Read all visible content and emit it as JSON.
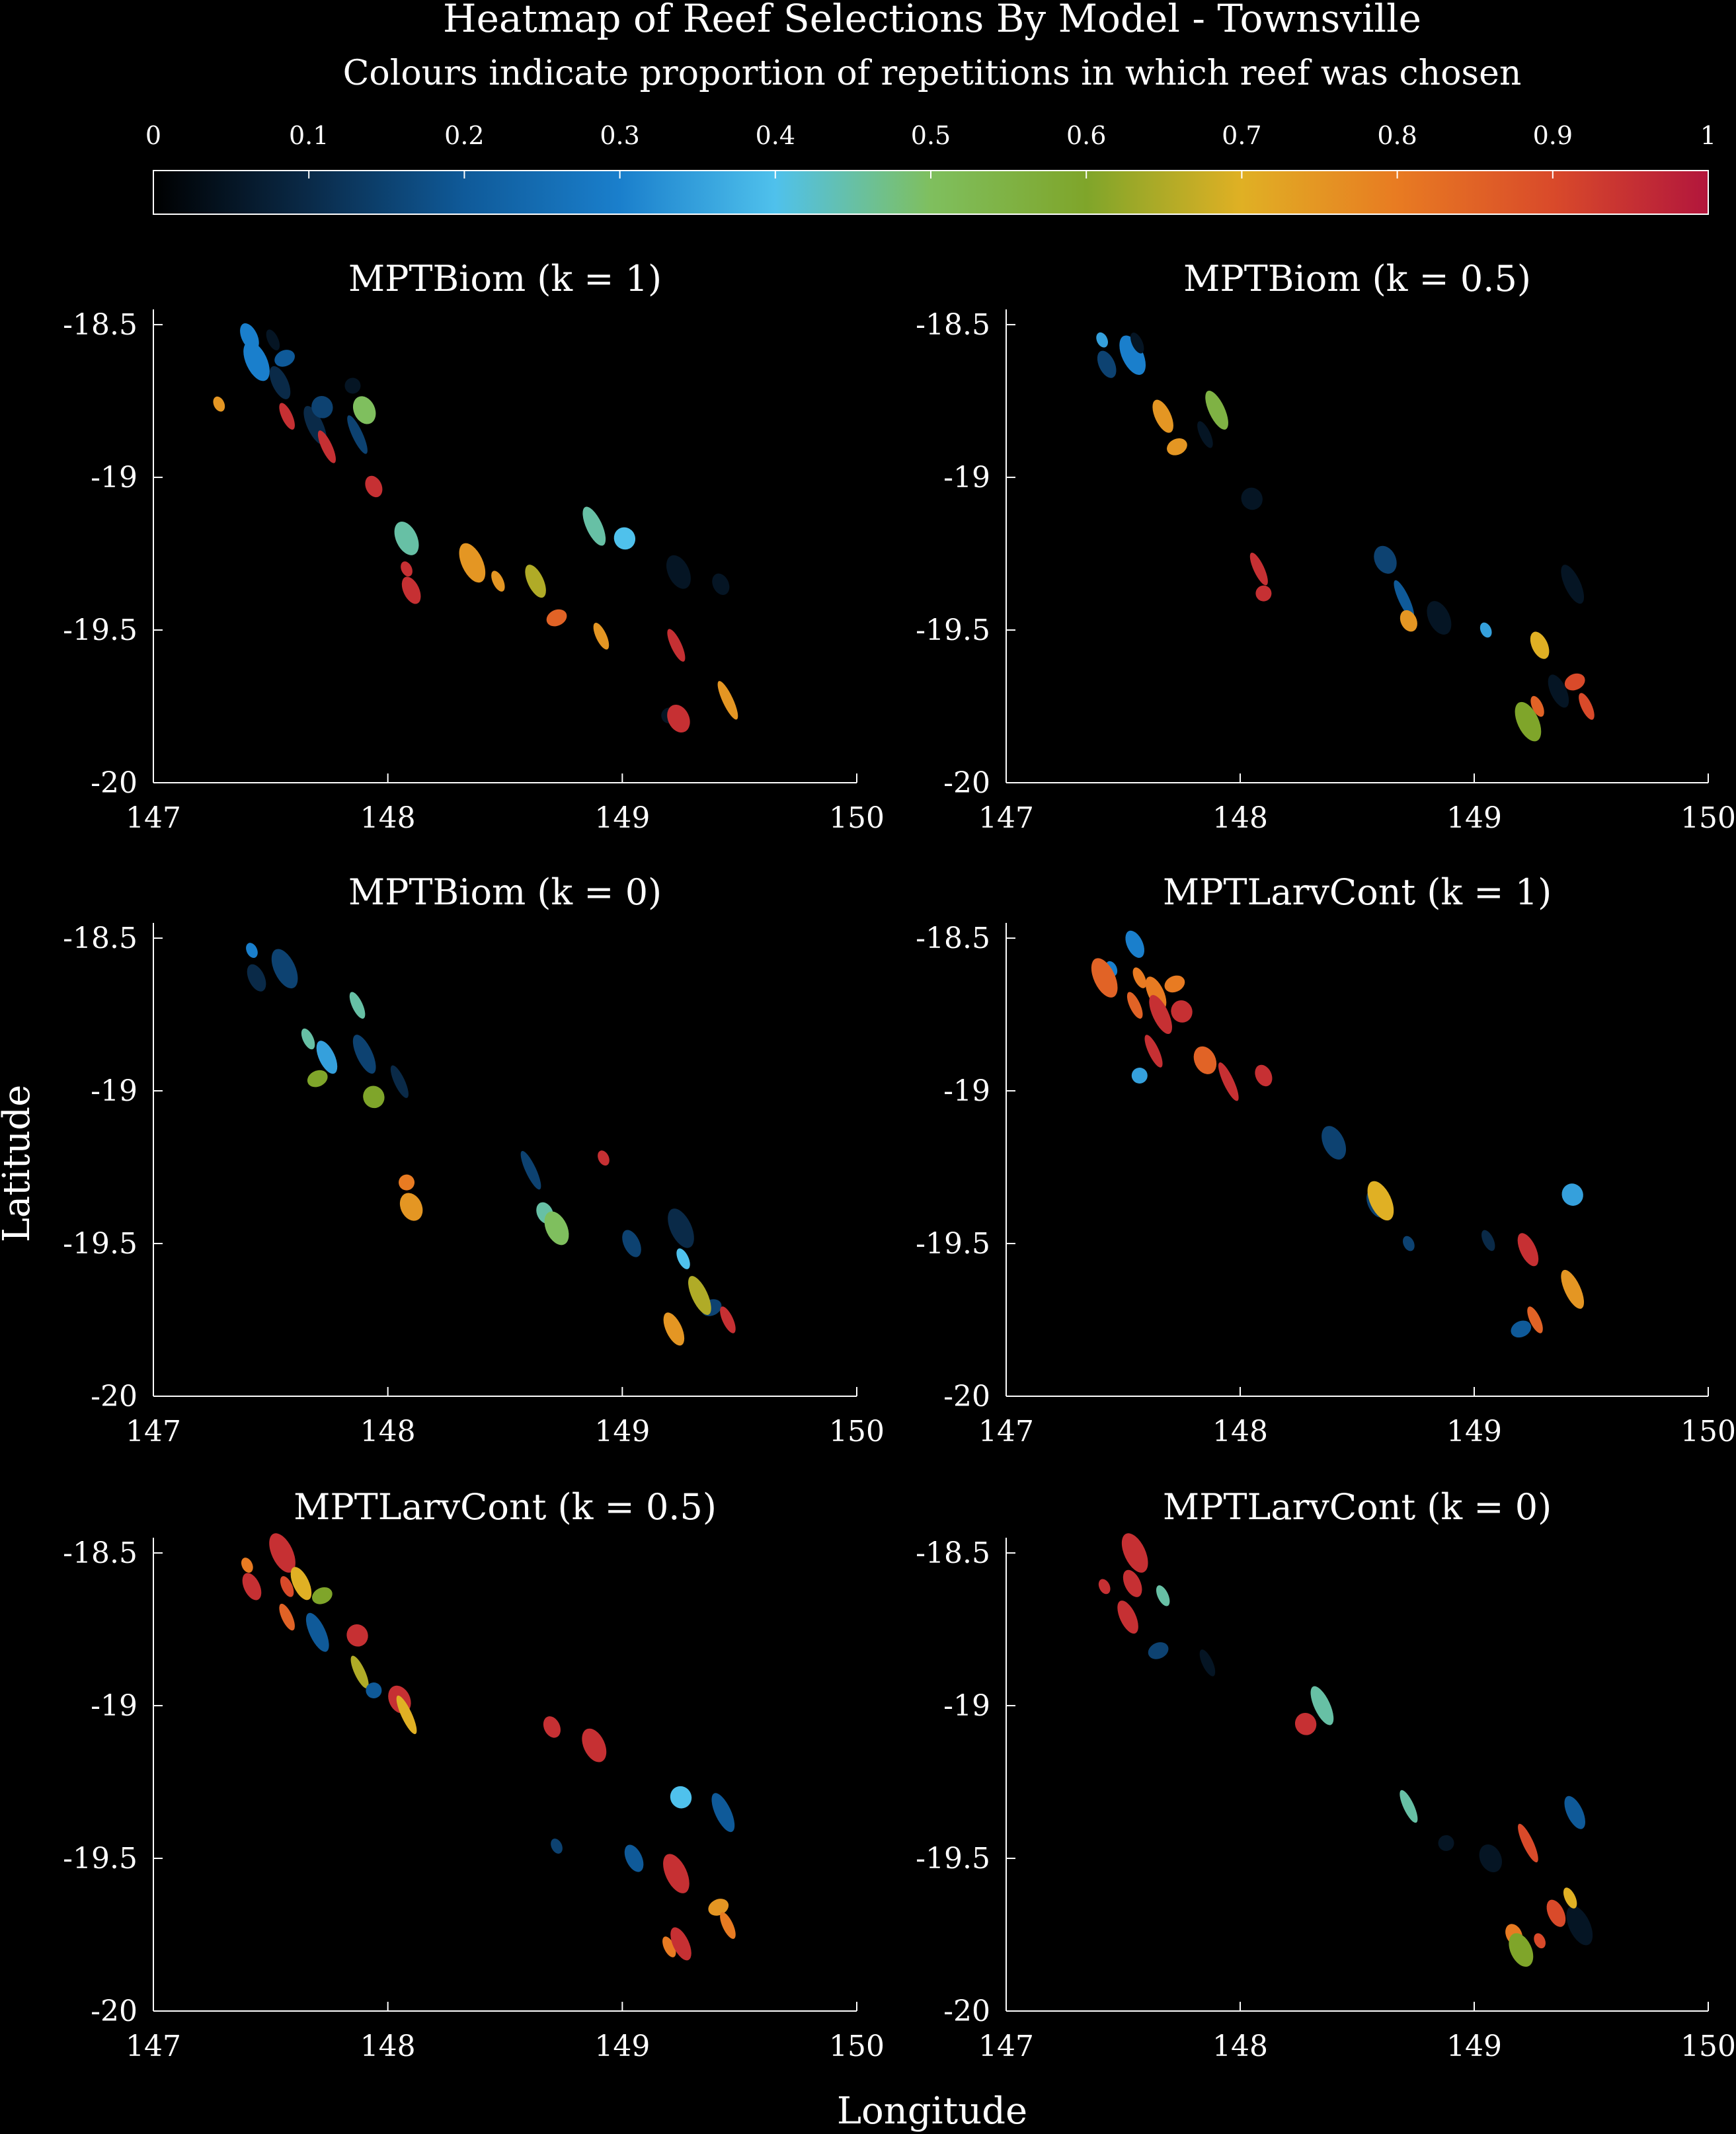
{
  "figure": {
    "title": "Heatmap of Reef Selections By Model - Townsville",
    "subtitle": "Colours indicate proportion of repetitions in which reef was chosen",
    "xlabel": "Longitude",
    "ylabel": "Latitude",
    "background": "#000000",
    "colorbar": {
      "ticks": [
        "0",
        "0.1",
        "0.2",
        "0.3",
        "0.4",
        "0.5",
        "0.6",
        "0.7",
        "0.8",
        "0.9",
        "1"
      ],
      "colormap": [
        "#000000",
        "#0a2a48",
        "#0f5a99",
        "#1a7fcc",
        "#4fc1ec",
        "#7fbf5e",
        "#7fa52a",
        "#e0b024",
        "#e87b22",
        "#d94a2a",
        "#b2163c"
      ]
    }
  },
  "chart_data": [
    {
      "type": "heatmap",
      "title": "MPTBiom (k = 1)",
      "xlim": [
        147,
        150
      ],
      "ylim": [
        -20,
        -18.45
      ],
      "xticks": [
        "147",
        "148",
        "149",
        "150"
      ],
      "yticks": [
        "-18.5",
        "-19",
        "-19.5",
        "-20"
      ],
      "reefs": [
        {
          "lon": 147.28,
          "lat": -18.76,
          "value": 0.75
        },
        {
          "lon": 147.41,
          "lat": -18.54,
          "value": 0.3
        },
        {
          "lon": 147.44,
          "lat": -18.62,
          "value": 0.3
        },
        {
          "lon": 147.51,
          "lat": -18.55,
          "value": 0.05
        },
        {
          "lon": 147.54,
          "lat": -18.69,
          "value": 0.1
        },
        {
          "lon": 147.56,
          "lat": -18.61,
          "value": 0.2
        },
        {
          "lon": 147.57,
          "lat": -18.8,
          "value": 0.95
        },
        {
          "lon": 147.69,
          "lat": -18.83,
          "value": 0.1
        },
        {
          "lon": 147.72,
          "lat": -18.77,
          "value": 0.15
        },
        {
          "lon": 147.74,
          "lat": -18.9,
          "value": 0.95
        },
        {
          "lon": 147.85,
          "lat": -18.7,
          "value": 0.05
        },
        {
          "lon": 147.9,
          "lat": -18.78,
          "value": 0.5
        },
        {
          "lon": 147.87,
          "lat": -18.86,
          "value": 0.15
        },
        {
          "lon": 147.94,
          "lat": -19.03,
          "value": 0.95
        },
        {
          "lon": 148.08,
          "lat": -19.2,
          "value": 0.45
        },
        {
          "lon": 148.08,
          "lat": -19.3,
          "value": 0.95
        },
        {
          "lon": 148.1,
          "lat": -19.37,
          "value": 0.95
        },
        {
          "lon": 148.36,
          "lat": -19.28,
          "value": 0.75
        },
        {
          "lon": 148.47,
          "lat": -19.34,
          "value": 0.75
        },
        {
          "lon": 148.63,
          "lat": -19.34,
          "value": 0.65
        },
        {
          "lon": 148.72,
          "lat": -19.46,
          "value": 0.85
        },
        {
          "lon": 148.91,
          "lat": -19.52,
          "value": 0.75
        },
        {
          "lon": 148.88,
          "lat": -19.16,
          "value": 0.45
        },
        {
          "lon": 149.01,
          "lat": -19.2,
          "value": 0.4
        },
        {
          "lon": 149.23,
          "lat": -19.55,
          "value": 0.95
        },
        {
          "lon": 149.2,
          "lat": -19.78,
          "value": 0.05
        },
        {
          "lon": 149.24,
          "lat": -19.79,
          "value": 0.95
        },
        {
          "lon": 149.45,
          "lat": -19.73,
          "value": 0.75
        },
        {
          "lon": 149.42,
          "lat": -19.35,
          "value": 0.05
        },
        {
          "lon": 149.24,
          "lat": -19.31,
          "value": 0.05
        }
      ]
    },
    {
      "type": "heatmap",
      "title": "MPTBiom (k = 0.5)",
      "xlim": [
        147,
        150
      ],
      "ylim": [
        -20,
        -18.45
      ],
      "xticks": [
        "147",
        "148",
        "149",
        "150"
      ],
      "yticks": [
        "-18.5",
        "-19",
        "-19.5",
        "-20"
      ],
      "reefs": [
        {
          "lon": 147.41,
          "lat": -18.55,
          "value": 0.35
        },
        {
          "lon": 147.43,
          "lat": -18.63,
          "value": 0.15
        },
        {
          "lon": 147.54,
          "lat": -18.6,
          "value": 0.3
        },
        {
          "lon": 147.56,
          "lat": -18.56,
          "value": 0.05
        },
        {
          "lon": 147.67,
          "lat": -18.8,
          "value": 0.75
        },
        {
          "lon": 147.73,
          "lat": -18.9,
          "value": 0.75
        },
        {
          "lon": 147.85,
          "lat": -18.86,
          "value": 0.05
        },
        {
          "lon": 147.9,
          "lat": -18.78,
          "value": 0.55
        },
        {
          "lon": 148.05,
          "lat": -19.07,
          "value": 0.05
        },
        {
          "lon": 148.08,
          "lat": -19.3,
          "value": 0.95
        },
        {
          "lon": 148.1,
          "lat": -19.38,
          "value": 0.95
        },
        {
          "lon": 148.62,
          "lat": -19.27,
          "value": 0.15
        },
        {
          "lon": 148.7,
          "lat": -19.4,
          "value": 0.2
        },
        {
          "lon": 148.72,
          "lat": -19.47,
          "value": 0.75
        },
        {
          "lon": 148.85,
          "lat": -19.46,
          "value": 0.05
        },
        {
          "lon": 149.05,
          "lat": -19.5,
          "value": 0.35
        },
        {
          "lon": 149.28,
          "lat": -19.55,
          "value": 0.7
        },
        {
          "lon": 149.23,
          "lat": -19.8,
          "value": 0.6
        },
        {
          "lon": 149.27,
          "lat": -19.75,
          "value": 0.85
        },
        {
          "lon": 149.36,
          "lat": -19.7,
          "value": 0.05
        },
        {
          "lon": 149.43,
          "lat": -19.67,
          "value": 0.9
        },
        {
          "lon": 149.48,
          "lat": -19.75,
          "value": 0.9
        },
        {
          "lon": 149.42,
          "lat": -19.35,
          "value": 0.05
        }
      ]
    },
    {
      "type": "heatmap",
      "title": "MPTBiom (k = 0)",
      "xlim": [
        147,
        150
      ],
      "ylim": [
        -20,
        -18.45
      ],
      "xticks": [
        "147",
        "148",
        "149",
        "150"
      ],
      "yticks": [
        "-18.5",
        "-19",
        "-19.5",
        "-20"
      ],
      "reefs": [
        {
          "lon": 147.42,
          "lat": -18.54,
          "value": 0.3
        },
        {
          "lon": 147.44,
          "lat": -18.63,
          "value": 0.1
        },
        {
          "lon": 147.56,
          "lat": -18.6,
          "value": 0.15
        },
        {
          "lon": 147.66,
          "lat": -18.83,
          "value": 0.45
        },
        {
          "lon": 147.74,
          "lat": -18.89,
          "value": 0.35
        },
        {
          "lon": 147.7,
          "lat": -18.96,
          "value": 0.6
        },
        {
          "lon": 147.87,
          "lat": -18.72,
          "value": 0.45
        },
        {
          "lon": 147.9,
          "lat": -18.88,
          "value": 0.15
        },
        {
          "lon": 147.94,
          "lat": -19.02,
          "value": 0.6
        },
        {
          "lon": 148.05,
          "lat": -18.97,
          "value": 0.1
        },
        {
          "lon": 148.08,
          "lat": -19.3,
          "value": 0.8
        },
        {
          "lon": 148.1,
          "lat": -19.38,
          "value": 0.75
        },
        {
          "lon": 148.61,
          "lat": -19.26,
          "value": 0.15
        },
        {
          "lon": 148.67,
          "lat": -19.4,
          "value": 0.45
        },
        {
          "lon": 148.72,
          "lat": -19.45,
          "value": 0.5
        },
        {
          "lon": 148.92,
          "lat": -19.22,
          "value": 0.95
        },
        {
          "lon": 149.04,
          "lat": -19.5,
          "value": 0.15
        },
        {
          "lon": 149.25,
          "lat": -19.45,
          "value": 0.1
        },
        {
          "lon": 149.26,
          "lat": -19.55,
          "value": 0.4
        },
        {
          "lon": 149.22,
          "lat": -19.78,
          "value": 0.75
        },
        {
          "lon": 149.38,
          "lat": -19.71,
          "value": 0.15
        },
        {
          "lon": 149.45,
          "lat": -19.75,
          "value": 0.95
        },
        {
          "lon": 149.33,
          "lat": -19.67,
          "value": 0.65
        }
      ]
    },
    {
      "type": "heatmap",
      "title": "MPTLarvCont (k = 1)",
      "xlim": [
        147,
        150
      ],
      "ylim": [
        -20,
        -18.45
      ],
      "xticks": [
        "147",
        "148",
        "149",
        "150"
      ],
      "yticks": [
        "-18.5",
        "-19",
        "-19.5",
        "-20"
      ],
      "reefs": [
        {
          "lon": 147.45,
          "lat": -18.6,
          "value": 0.3
        },
        {
          "lon": 147.55,
          "lat": -18.52,
          "value": 0.3
        },
        {
          "lon": 147.42,
          "lat": -18.63,
          "value": 0.85
        },
        {
          "lon": 147.57,
          "lat": -18.63,
          "value": 0.8
        },
        {
          "lon": 147.64,
          "lat": -18.68,
          "value": 0.8
        },
        {
          "lon": 147.72,
          "lat": -18.65,
          "value": 0.8
        },
        {
          "lon": 147.55,
          "lat": -18.72,
          "value": 0.85
        },
        {
          "lon": 147.66,
          "lat": -18.75,
          "value": 0.95
        },
        {
          "lon": 147.75,
          "lat": -18.74,
          "value": 0.95
        },
        {
          "lon": 147.63,
          "lat": -18.87,
          "value": 0.95
        },
        {
          "lon": 147.57,
          "lat": -18.95,
          "value": 0.35
        },
        {
          "lon": 147.85,
          "lat": -18.9,
          "value": 0.85
        },
        {
          "lon": 147.95,
          "lat": -18.97,
          "value": 0.95
        },
        {
          "lon": 148.1,
          "lat": -18.95,
          "value": 0.95
        },
        {
          "lon": 148.4,
          "lat": -19.17,
          "value": 0.15
        },
        {
          "lon": 148.72,
          "lat": -19.5,
          "value": 0.15
        },
        {
          "lon": 148.58,
          "lat": -19.37,
          "value": 0.15
        },
        {
          "lon": 148.6,
          "lat": -19.36,
          "value": 0.7
        },
        {
          "lon": 149.06,
          "lat": -19.49,
          "value": 0.1
        },
        {
          "lon": 149.23,
          "lat": -19.52,
          "value": 0.95
        },
        {
          "lon": 149.2,
          "lat": -19.78,
          "value": 0.2
        },
        {
          "lon": 149.26,
          "lat": -19.75,
          "value": 0.85
        },
        {
          "lon": 149.42,
          "lat": -19.65,
          "value": 0.75
        },
        {
          "lon": 149.42,
          "lat": -19.34,
          "value": 0.35
        }
      ]
    },
    {
      "type": "heatmap",
      "title": "MPTLarvCont (k = 0.5)",
      "xlim": [
        147,
        150
      ],
      "ylim": [
        -20,
        -18.45
      ],
      "xticks": [
        "147",
        "148",
        "149",
        "150"
      ],
      "yticks": [
        "-18.5",
        "-19",
        "-19.5",
        "-20"
      ],
      "reefs": [
        {
          "lon": 147.4,
          "lat": -18.54,
          "value": 0.8
        },
        {
          "lon": 147.42,
          "lat": -18.61,
          "value": 0.95
        },
        {
          "lon": 147.55,
          "lat": -18.5,
          "value": 0.95
        },
        {
          "lon": 147.57,
          "lat": -18.61,
          "value": 0.9
        },
        {
          "lon": 147.63,
          "lat": -18.6,
          "value": 0.7
        },
        {
          "lon": 147.72,
          "lat": -18.64,
          "value": 0.6
        },
        {
          "lon": 147.57,
          "lat": -18.71,
          "value": 0.85
        },
        {
          "lon": 147.7,
          "lat": -18.76,
          "value": 0.2
        },
        {
          "lon": 147.87,
          "lat": -18.77,
          "value": 0.95
        },
        {
          "lon": 147.88,
          "lat": -18.89,
          "value": 0.65
        },
        {
          "lon": 147.94,
          "lat": -18.95,
          "value": 0.2
        },
        {
          "lon": 148.05,
          "lat": -18.98,
          "value": 0.95
        },
        {
          "lon": 148.08,
          "lat": -19.03,
          "value": 0.7
        },
        {
          "lon": 148.7,
          "lat": -19.07,
          "value": 0.95
        },
        {
          "lon": 148.88,
          "lat": -19.13,
          "value": 0.95
        },
        {
          "lon": 148.72,
          "lat": -19.46,
          "value": 0.15
        },
        {
          "lon": 149.05,
          "lat": -19.5,
          "value": 0.2
        },
        {
          "lon": 149.23,
          "lat": -19.55,
          "value": 0.95
        },
        {
          "lon": 149.2,
          "lat": -19.79,
          "value": 0.8
        },
        {
          "lon": 149.25,
          "lat": -19.78,
          "value": 0.95
        },
        {
          "lon": 149.41,
          "lat": -19.66,
          "value": 0.75
        },
        {
          "lon": 149.45,
          "lat": -19.72,
          "value": 0.8
        },
        {
          "lon": 149.43,
          "lat": -19.35,
          "value": 0.2
        },
        {
          "lon": 149.25,
          "lat": -19.3,
          "value": 0.4
        }
      ]
    },
    {
      "type": "heatmap",
      "title": "MPTLarvCont (k = 0)",
      "xlim": [
        147,
        150
      ],
      "ylim": [
        -20,
        -18.45
      ],
      "xticks": [
        "147",
        "148",
        "149",
        "150"
      ],
      "yticks": [
        "-18.5",
        "-19",
        "-19.5",
        "-20"
      ],
      "reefs": [
        {
          "lon": 147.42,
          "lat": -18.61,
          "value": 0.95
        },
        {
          "lon": 147.54,
          "lat": -18.6,
          "value": 0.95
        },
        {
          "lon": 147.55,
          "lat": -18.5,
          "value": 0.95
        },
        {
          "lon": 147.67,
          "lat": -18.64,
          "value": 0.45
        },
        {
          "lon": 147.52,
          "lat": -18.71,
          "value": 0.95
        },
        {
          "lon": 147.65,
          "lat": -18.82,
          "value": 0.15
        },
        {
          "lon": 147.86,
          "lat": -18.86,
          "value": 0.05
        },
        {
          "lon": 148.35,
          "lat": -19.0,
          "value": 0.45
        },
        {
          "lon": 148.28,
          "lat": -19.06,
          "value": 0.95
        },
        {
          "lon": 148.72,
          "lat": -19.33,
          "value": 0.45
        },
        {
          "lon": 148.88,
          "lat": -19.45,
          "value": 0.05
        },
        {
          "lon": 149.07,
          "lat": -19.5,
          "value": 0.05
        },
        {
          "lon": 149.23,
          "lat": -19.45,
          "value": 0.9
        },
        {
          "lon": 149.17,
          "lat": -19.75,
          "value": 0.8
        },
        {
          "lon": 149.2,
          "lat": -19.8,
          "value": 0.6
        },
        {
          "lon": 149.28,
          "lat": -19.77,
          "value": 0.9
        },
        {
          "lon": 149.35,
          "lat": -19.68,
          "value": 0.9
        },
        {
          "lon": 149.45,
          "lat": -19.72,
          "value": 0.05
        },
        {
          "lon": 149.41,
          "lat": -19.63,
          "value": 0.7
        },
        {
          "lon": 149.43,
          "lat": -19.35,
          "value": 0.2
        }
      ]
    }
  ]
}
